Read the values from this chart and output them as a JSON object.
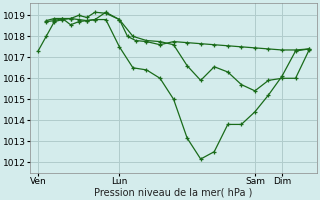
{
  "background_color": "#d4ecec",
  "grid_color": "#b0cccc",
  "line_color": "#1a6b1a",
  "xlabel": "Pression niveau de la mer( hPa )",
  "ylim": [
    1011.5,
    1019.6
  ],
  "yticks": [
    1012,
    1013,
    1014,
    1015,
    1016,
    1017,
    1018,
    1019
  ],
  "xtick_labels": [
    "Ven",
    "Lun",
    "Sam",
    "Dim"
  ],
  "xtick_positions": [
    0,
    3,
    8,
    9
  ],
  "vline_positions": [
    0,
    3,
    8,
    9
  ],
  "xlim": [
    -0.3,
    10.3
  ],
  "series": [
    {
      "points": [
        [
          0.0,
          1017.3
        ],
        [
          0.3,
          1018.0
        ],
        [
          0.6,
          1018.7
        ],
        [
          0.9,
          1018.8
        ],
        [
          1.2,
          1018.85
        ],
        [
          1.5,
          1019.0
        ],
        [
          1.8,
          1018.9
        ],
        [
          2.1,
          1019.15
        ],
        [
          2.5,
          1019.1
        ],
        [
          3.0,
          1018.8
        ],
        [
          3.3,
          1018.0
        ],
        [
          3.6,
          1017.8
        ],
        [
          4.0,
          1017.75
        ],
        [
          4.5,
          1017.6
        ],
        [
          5.0,
          1017.75
        ],
        [
          5.5,
          1017.7
        ],
        [
          6.0,
          1017.65
        ],
        [
          6.5,
          1017.6
        ],
        [
          7.0,
          1017.55
        ],
        [
          7.5,
          1017.5
        ],
        [
          8.0,
          1017.45
        ],
        [
          8.5,
          1017.4
        ],
        [
          9.0,
          1017.35
        ],
        [
          9.5,
          1017.35
        ],
        [
          10.0,
          1017.4
        ]
      ]
    },
    {
      "points": [
        [
          0.3,
          1018.7
        ],
        [
          0.6,
          1018.75
        ],
        [
          0.9,
          1018.85
        ],
        [
          1.2,
          1018.85
        ],
        [
          1.5,
          1018.8
        ],
        [
          1.8,
          1018.75
        ],
        [
          2.1,
          1018.8
        ],
        [
          2.5,
          1019.15
        ],
        [
          3.0,
          1018.8
        ],
        [
          3.5,
          1018.0
        ],
        [
          4.0,
          1017.8
        ],
        [
          4.5,
          1017.75
        ],
        [
          5.0,
          1017.6
        ],
        [
          5.5,
          1016.6
        ],
        [
          6.0,
          1015.9
        ],
        [
          6.5,
          1016.55
        ],
        [
          7.0,
          1016.3
        ],
        [
          7.5,
          1015.7
        ],
        [
          8.0,
          1015.4
        ],
        [
          8.5,
          1015.9
        ],
        [
          9.0,
          1016.0
        ],
        [
          9.5,
          1016.0
        ],
        [
          10.0,
          1017.35
        ]
      ]
    },
    {
      "points": [
        [
          0.3,
          1018.75
        ],
        [
          0.6,
          1018.85
        ],
        [
          0.9,
          1018.85
        ],
        [
          1.2,
          1018.55
        ],
        [
          1.5,
          1018.7
        ],
        [
          1.8,
          1018.75
        ],
        [
          2.1,
          1018.8
        ],
        [
          2.5,
          1018.8
        ],
        [
          3.0,
          1017.5
        ],
        [
          3.5,
          1016.5
        ],
        [
          4.0,
          1016.4
        ],
        [
          4.5,
          1016.0
        ],
        [
          5.0,
          1015.0
        ],
        [
          5.5,
          1013.15
        ],
        [
          6.0,
          1012.15
        ],
        [
          6.5,
          1012.5
        ],
        [
          7.0,
          1013.8
        ],
        [
          7.5,
          1013.8
        ],
        [
          8.0,
          1014.4
        ],
        [
          8.5,
          1015.2
        ],
        [
          9.0,
          1016.1
        ],
        [
          9.5,
          1017.3
        ],
        [
          10.0,
          1017.4
        ]
      ]
    }
  ]
}
